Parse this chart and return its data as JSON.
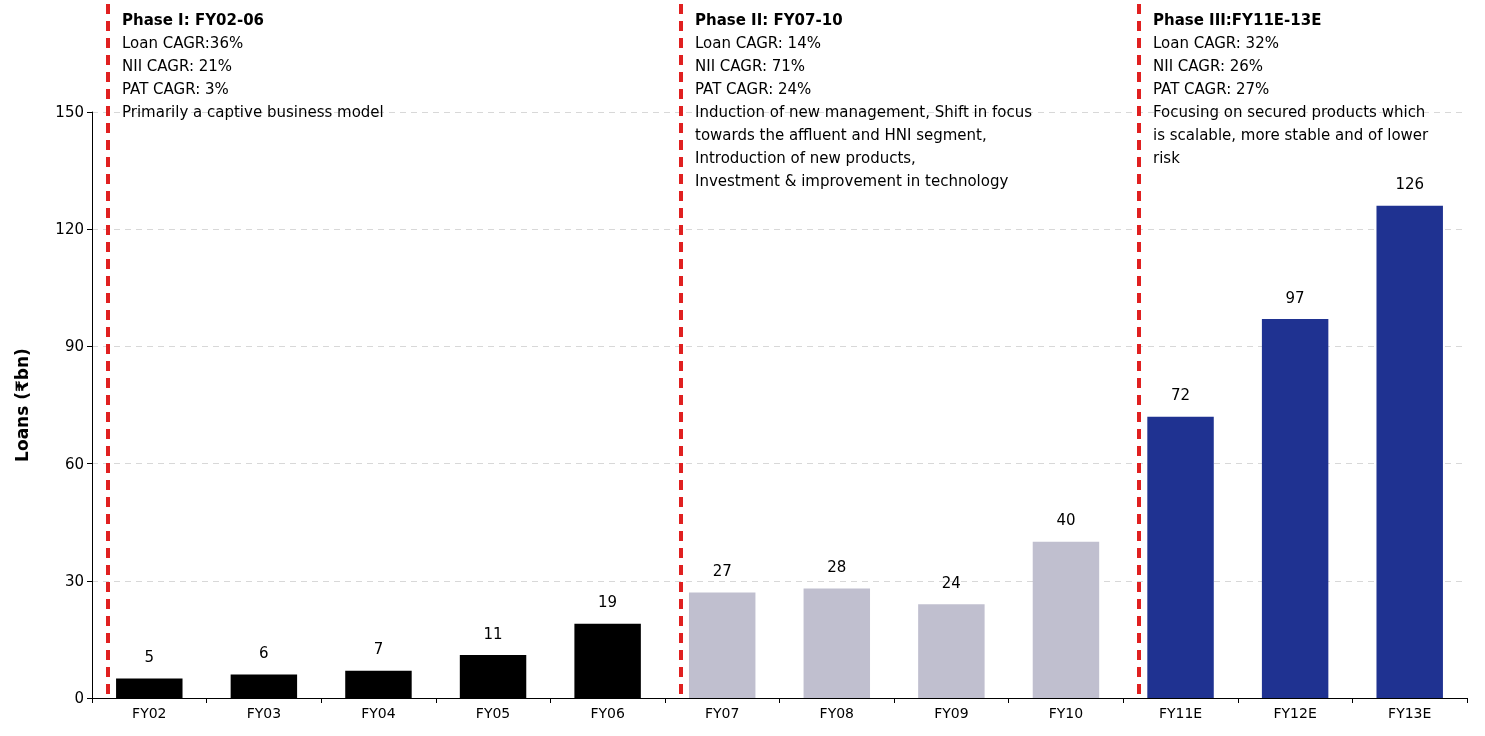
{
  "chart_data": {
    "type": "bar",
    "ylabel": "Loans (₹bn)",
    "categories": [
      "FY02",
      "FY03",
      "FY04",
      "FY05",
      "FY06",
      "FY07",
      "FY08",
      "FY09",
      "FY10",
      "FY11E",
      "FY12E",
      "FY13E"
    ],
    "values": [
      5,
      6,
      7,
      11,
      19,
      27,
      28,
      24,
      40,
      72,
      97,
      126
    ],
    "colors": [
      "#000000",
      "#000000",
      "#000000",
      "#000000",
      "#000000",
      "#c0bfcf",
      "#c0bfcf",
      "#c0bfcf",
      "#c0bfcf",
      "#1f3291",
      "#1f3291",
      "#1f3291"
    ],
    "ylim": [
      0,
      150
    ],
    "yticks": [
      0,
      30,
      60,
      90,
      120,
      150
    ],
    "grid": "y",
    "data_labels": true,
    "ref_lines": [
      {
        "axis": "x",
        "value": "FY02",
        "color": "#e02020",
        "line_style": "dashed",
        "label": "Phase I: FY02-06\nLoan CAGR:36%\nNII CAGR: 21%\nPAT CAGR: 3%\nPrimarily a captive business model"
      },
      {
        "axis": "x",
        "value": "FY07",
        "color": "#e02020",
        "line_style": "dashed",
        "label": "Phase II: FY07-10\nLoan CAGR: 14%\nNII CAGR: 71%\nPAT CAGR: 24%\nInduction of new management, Shift in focus\ntowards the affluent and HNI segment,\nIntroduction of new products,\nInvestment & improvement in technology"
      },
      {
        "axis": "x",
        "value": "FY11E",
        "color": "#e02020",
        "line_style": "dashed",
        "label": "Phase III:FY11E-13E\nLoan CAGR: 32%\nNII CAGR: 26%\nPAT CAGR: 27%\nFocusing on secured products which\nis scalable, more stable and of lower\nrisk"
      }
    ]
  }
}
